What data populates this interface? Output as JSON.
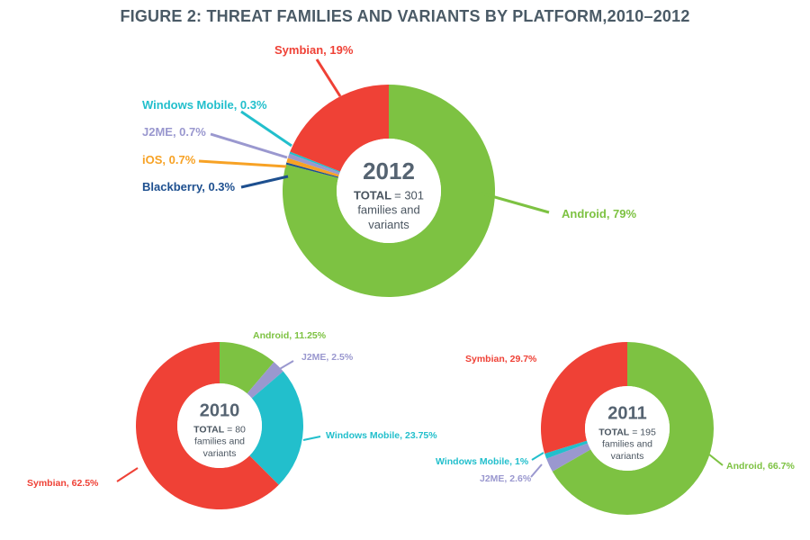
{
  "title": "FIGURE 2: THREAT FAMILIES AND VARIANTS BY PLATFORM,2010–2012",
  "colors": {
    "Android": "#7dc242",
    "Symbian": "#ef4136",
    "Windows Mobile": "#22bfcc",
    "J2ME": "#9a98cf",
    "iOS": "#f7a225",
    "Blackberry": "#1d4f8f",
    "label_gray": "#4a5560"
  },
  "chart_data": [
    {
      "type": "pie",
      "year": "2012",
      "center": {
        "total_label": "TOTAL",
        "total_value": "= 301",
        "line2": "families and",
        "line3": "variants"
      },
      "slices": [
        {
          "name": "Android",
          "value": 79,
          "label": "Android, 79%"
        },
        {
          "name": "Blackberry",
          "value": 0.3,
          "label": "Blackberry, 0.3%"
        },
        {
          "name": "iOS",
          "value": 0.7,
          "label": "iOS, 0.7%"
        },
        {
          "name": "J2ME",
          "value": 0.7,
          "label": "J2ME, 0.7%"
        },
        {
          "name": "Windows Mobile",
          "value": 0.3,
          "label": "Windows Mobile, 0.3%"
        },
        {
          "name": "Symbian",
          "value": 19,
          "label": "Symbian, 19%"
        }
      ]
    },
    {
      "type": "pie",
      "year": "2010",
      "center": {
        "total_label": "TOTAL",
        "total_value": "= 80",
        "line2": "families and",
        "line3": "variants"
      },
      "slices": [
        {
          "name": "Android",
          "value": 11.25,
          "label": "Android, 11.25%"
        },
        {
          "name": "J2ME",
          "value": 2.5,
          "label": "J2ME, 2.5%"
        },
        {
          "name": "Windows Mobile",
          "value": 23.75,
          "label": "Windows Mobile, 23.75%"
        },
        {
          "name": "Symbian",
          "value": 62.5,
          "label": "Symbian, 62.5%"
        }
      ]
    },
    {
      "type": "pie",
      "year": "2011",
      "center": {
        "total_label": "TOTAL",
        "total_value": "= 195",
        "line2": "families and",
        "line3": "variants"
      },
      "slices": [
        {
          "name": "Android",
          "value": 66.7,
          "label": "Android, 66.7%"
        },
        {
          "name": "J2ME",
          "value": 2.6,
          "label": "J2ME, 2.6%"
        },
        {
          "name": "Windows Mobile",
          "value": 1,
          "label": "Windows Mobile, 1%"
        },
        {
          "name": "Symbian",
          "value": 29.7,
          "label": "Symbian, 29.7%"
        }
      ]
    }
  ]
}
